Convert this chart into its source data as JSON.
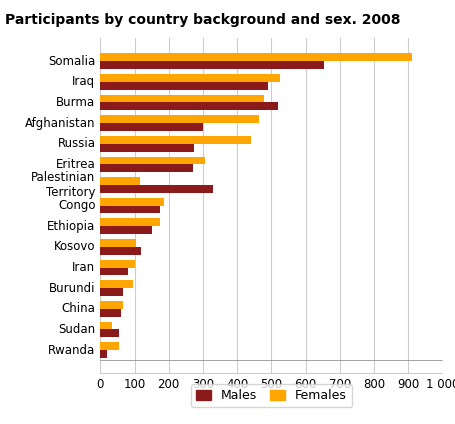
{
  "title": "Participants by country background and sex. 2008",
  "categories": [
    "Somalia",
    "Iraq",
    "Burma",
    "Afghanistan",
    "Russia",
    "Eritrea",
    "Palestinian\nTerritory",
    "Congo",
    "Ethiopia",
    "Kosovo",
    "Iran",
    "Burundi",
    "China",
    "Sudan",
    "Rwanda"
  ],
  "males": [
    655,
    490,
    520,
    300,
    275,
    270,
    330,
    175,
    150,
    120,
    80,
    65,
    60,
    55,
    20
  ],
  "females": [
    910,
    525,
    480,
    465,
    440,
    305,
    115,
    185,
    175,
    105,
    100,
    95,
    65,
    35,
    55
  ],
  "male_color": "#8B1A1A",
  "female_color": "#FFA500",
  "xlim": [
    0,
    1000
  ],
  "xticks": [
    0,
    100,
    200,
    300,
    400,
    500,
    600,
    700,
    800,
    900,
    1000
  ],
  "xtick_labels": [
    "0",
    "100",
    "200",
    "300",
    "400",
    "500",
    "600",
    "700",
    "800",
    "900",
    "1 000"
  ],
  "background_color": "#ffffff",
  "grid_color": "#cccccc",
  "bar_height": 0.38,
  "title_fontsize": 10,
  "tick_fontsize": 8.5,
  "legend_fontsize": 9
}
